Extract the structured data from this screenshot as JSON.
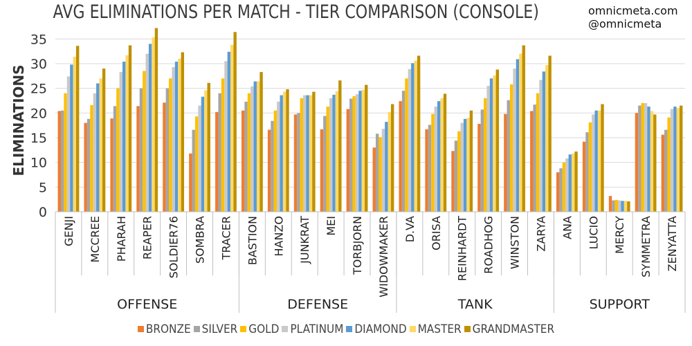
{
  "header": {
    "title": "AVG ELIMINATIONS PER MATCH - TIER COMPARISON (CONSOLE)",
    "credit_site": "omnicmeta.com",
    "credit_handle": "@omnicmeta"
  },
  "chart_data": {
    "type": "bar",
    "title": "AVG ELIMINATIONS PER MATCH - TIER COMPARISON (CONSOLE)",
    "ylabel": "ELIMINATIONS",
    "ylim": [
      0,
      37
    ],
    "yticks": [
      0,
      5,
      10,
      15,
      20,
      25,
      30,
      35
    ],
    "grid": true,
    "legend_position": "bottom",
    "groups": [
      {
        "name": "OFFENSE",
        "categories": [
          "GENJI",
          "MCCREE",
          "PHARAH",
          "REAPER",
          "SOLDIER76",
          "SOMBRA",
          "TRACER"
        ]
      },
      {
        "name": "DEFENSE",
        "categories": [
          "BASTION",
          "HANZO",
          "JUNKRAT",
          "MEI",
          "TORBJORN",
          "WIDOWMAKER"
        ]
      },
      {
        "name": "TANK",
        "categories": [
          "D.VA",
          "ORISA",
          "REINHARDT",
          "ROADHOG",
          "WINSTON",
          "ZARYA"
        ]
      },
      {
        "name": "SUPPORT",
        "categories": [
          "ANA",
          "LUCIO",
          "MERCY",
          "SYMMETRA",
          "ZENYATTA"
        ]
      }
    ],
    "categories": [
      "GENJI",
      "MCCREE",
      "PHARAH",
      "REAPER",
      "SOLDIER76",
      "SOMBRA",
      "TRACER",
      "BASTION",
      "HANZO",
      "JUNKRAT",
      "MEI",
      "TORBJORN",
      "WIDOWMAKER",
      "D.VA",
      "ORISA",
      "REINHARDT",
      "ROADHOG",
      "WINSTON",
      "ZARYA",
      "ANA",
      "LUCIO",
      "MERCY",
      "SYMMETRA",
      "ZENYATTA"
    ],
    "series": [
      {
        "name": "BRONZE",
        "color": "#ed7d31",
        "values": [
          20.4,
          18.0,
          18.9,
          21.4,
          22.1,
          11.8,
          20.2,
          20.5,
          16.6,
          19.7,
          16.7,
          20.8,
          13.0,
          22.4,
          16.7,
          12.3,
          17.8,
          19.8,
          20.4,
          8.0,
          14.2,
          3.2,
          20.0,
          15.6
        ]
      },
      {
        "name": "SILVER",
        "color": "#a5a5a5",
        "values": [
          20.5,
          18.8,
          21.4,
          25.0,
          25.0,
          16.6,
          24.0,
          22.3,
          18.4,
          20.0,
          19.4,
          22.9,
          15.8,
          24.5,
          17.6,
          14.4,
          20.7,
          22.6,
          21.7,
          8.8,
          16.1,
          2.3,
          21.5,
          16.6
        ]
      },
      {
        "name": "GOLD",
        "color": "#ffc000",
        "values": [
          24.0,
          21.6,
          25.0,
          28.5,
          27.0,
          19.3,
          27.0,
          24.0,
          20.5,
          23.0,
          21.3,
          23.4,
          15.1,
          27.0,
          19.8,
          16.3,
          23.0,
          25.8,
          24.0,
          10.0,
          18.1,
          2.4,
          22.0,
          19.1
        ]
      },
      {
        "name": "PLATINUM",
        "color": "#c9c9c9",
        "values": [
          27.4,
          24.0,
          28.3,
          32.0,
          29.3,
          21.5,
          30.5,
          25.4,
          22.3,
          23.6,
          23.0,
          23.8,
          16.8,
          28.9,
          21.3,
          18.0,
          25.5,
          29.0,
          26.7,
          10.8,
          19.7,
          2.3,
          22.0,
          20.8
        ]
      },
      {
        "name": "DIAMOND",
        "color": "#5b9bd5",
        "values": [
          29.8,
          26.0,
          30.4,
          34.0,
          30.4,
          23.3,
          32.4,
          26.4,
          23.6,
          23.6,
          23.7,
          24.5,
          18.2,
          30.1,
          22.4,
          18.8,
          27.0,
          30.9,
          28.4,
          11.6,
          20.5,
          2.2,
          21.3,
          21.3
        ]
      },
      {
        "name": "MASTER",
        "color": "#ffd966",
        "values": [
          31.4,
          27.0,
          31.7,
          35.3,
          31.0,
          24.6,
          33.8,
          26.4,
          24.3,
          23.6,
          24.4,
          24.7,
          20.2,
          30.6,
          23.0,
          19.0,
          27.6,
          32.0,
          29.7,
          11.8,
          20.5,
          2.2,
          20.4,
          21.0
        ]
      },
      {
        "name": "GRANDMASTER",
        "color": "#bf9000",
        "values": [
          33.6,
          29.0,
          33.7,
          37.2,
          32.3,
          26.1,
          36.4,
          28.3,
          24.8,
          24.3,
          26.6,
          25.7,
          21.8,
          31.6,
          23.9,
          20.5,
          28.8,
          33.7,
          31.6,
          12.2,
          21.8,
          2.1,
          19.7,
          21.5
        ]
      }
    ]
  }
}
